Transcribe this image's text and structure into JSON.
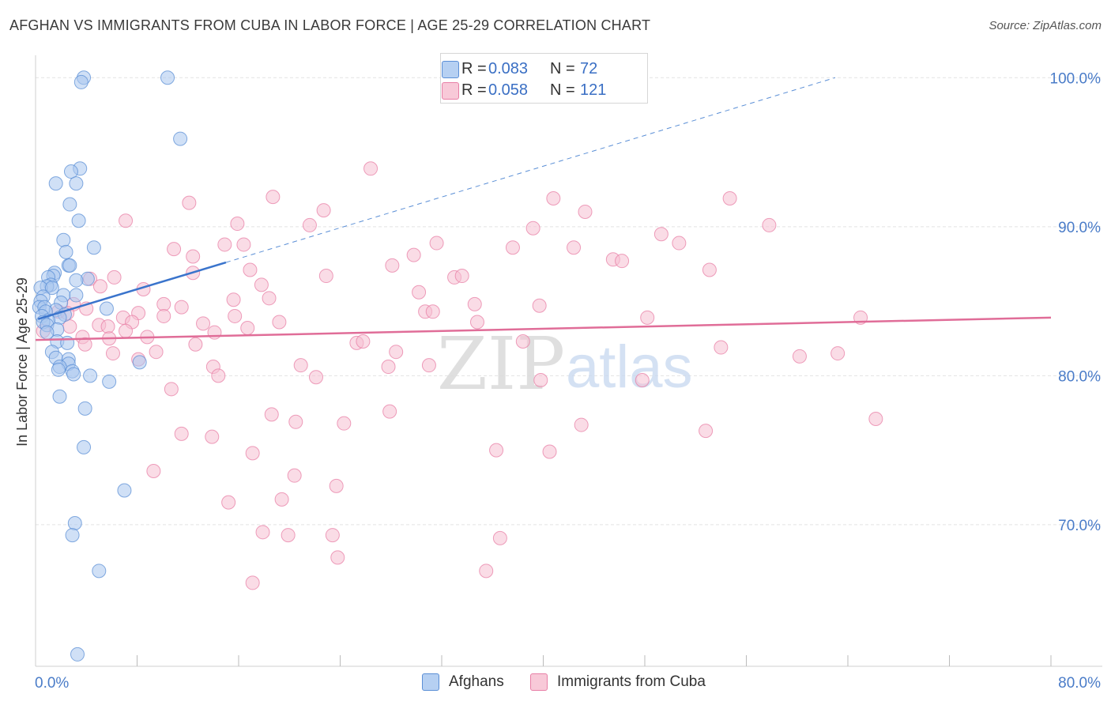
{
  "header": {
    "title": "AFGHAN VS IMMIGRANTS FROM CUBA IN LABOR FORCE | AGE 25-29 CORRELATION CHART",
    "source": "Source: ZipAtlas.com"
  },
  "watermark": {
    "zip": "ZIP",
    "atlas": "atlas"
  },
  "legend": {
    "rows": [
      {
        "r_label": "R =",
        "r_value": "0.083",
        "n_label": "N =",
        "n_value": "72",
        "color": "#5b8fd6"
      },
      {
        "r_label": "R =",
        "r_value": "0.058",
        "n_label": "N =",
        "n_value": "121",
        "color": "#e87fa6"
      }
    ]
  },
  "bottom_legend": [
    {
      "label": "Afghans",
      "color": "#a9c7ef"
    },
    {
      "label": "Immigrants from Cuba",
      "color": "#f6bfd1"
    }
  ],
  "chart_data": {
    "type": "scatter",
    "title": "AFGHAN VS IMMIGRANTS FROM CUBA IN LABOR FORCE | AGE 25-29 CORRELATION CHART",
    "xlabel": "",
    "ylabel": "In Labor Force | Age 25-29",
    "xlim": [
      0,
      80
    ],
    "ylim": [
      60.5,
      101.5
    ],
    "x_tick_labels": [
      "0.0%",
      "80.0%"
    ],
    "y_ticks": [
      70,
      80,
      90,
      100
    ],
    "y_tick_labels": [
      "70.0%",
      "80.0%",
      "90.0%",
      "100.0%"
    ],
    "grid": true,
    "series": [
      {
        "name": "Afghans",
        "color": "#5b8fd6",
        "fill": "#a9c7ef",
        "trend": {
          "x": [
            0.2,
            15.0
          ],
          "y": [
            83.8,
            87.6
          ],
          "dashed_to": [
            63.0,
            100.0
          ]
        },
        "points": [
          [
            3.8,
            100.0
          ],
          [
            10.4,
            100.0
          ],
          [
            3.6,
            99.7
          ],
          [
            11.4,
            95.9
          ],
          [
            3.5,
            93.9
          ],
          [
            2.8,
            93.7
          ],
          [
            1.6,
            92.9
          ],
          [
            3.2,
            92.9
          ],
          [
            2.7,
            91.5
          ],
          [
            3.4,
            90.4
          ],
          [
            4.6,
            88.6
          ],
          [
            2.2,
            89.1
          ],
          [
            2.4,
            88.3
          ],
          [
            2.6,
            87.4
          ],
          [
            2.7,
            87.4
          ],
          [
            1.5,
            86.9
          ],
          [
            1.4,
            86.7
          ],
          [
            1.0,
            86.6
          ],
          [
            4.1,
            86.5
          ],
          [
            3.2,
            86.4
          ],
          [
            1.2,
            86.1
          ],
          [
            0.9,
            86.0
          ],
          [
            0.4,
            85.9
          ],
          [
            1.3,
            85.9
          ],
          [
            2.2,
            85.4
          ],
          [
            3.2,
            85.4
          ],
          [
            0.6,
            85.3
          ],
          [
            0.4,
            85.0
          ],
          [
            2.0,
            84.9
          ],
          [
            0.3,
            84.6
          ],
          [
            0.7,
            84.6
          ],
          [
            5.6,
            84.5
          ],
          [
            1.6,
            84.4
          ],
          [
            0.8,
            84.3
          ],
          [
            2.3,
            84.1
          ],
          [
            1.9,
            83.9
          ],
          [
            0.5,
            84.0
          ],
          [
            1.0,
            83.7
          ],
          [
            0.6,
            83.6
          ],
          [
            0.9,
            83.4
          ],
          [
            1.7,
            83.1
          ],
          [
            0.9,
            82.9
          ],
          [
            1.7,
            82.3
          ],
          [
            2.5,
            82.2
          ],
          [
            1.3,
            81.6
          ],
          [
            1.6,
            81.2
          ],
          [
            2.6,
            81.1
          ],
          [
            8.2,
            80.9
          ],
          [
            2.6,
            80.8
          ],
          [
            1.9,
            80.6
          ],
          [
            1.8,
            80.4
          ],
          [
            2.9,
            80.3
          ],
          [
            3.0,
            80.1
          ],
          [
            4.3,
            80.0
          ],
          [
            5.8,
            79.6
          ],
          [
            1.9,
            78.6
          ],
          [
            3.9,
            77.8
          ],
          [
            3.8,
            75.2
          ],
          [
            7.0,
            72.3
          ],
          [
            3.1,
            70.1
          ],
          [
            2.9,
            69.3
          ],
          [
            5.0,
            66.9
          ],
          [
            3.3,
            61.3
          ]
        ]
      },
      {
        "name": "Immigrants from Cuba",
        "color": "#e87fa6",
        "fill": "#f6bfd1",
        "trend": {
          "x": [
            0.0,
            80.0
          ],
          "y": [
            82.4,
            83.9
          ]
        },
        "points": [
          [
            26.4,
            93.9
          ],
          [
            12.1,
            91.6
          ],
          [
            18.7,
            92.0
          ],
          [
            40.8,
            91.9
          ],
          [
            54.7,
            91.9
          ],
          [
            22.7,
            91.1
          ],
          [
            43.3,
            91.0
          ],
          [
            7.1,
            90.4
          ],
          [
            15.9,
            90.2
          ],
          [
            21.6,
            90.1
          ],
          [
            39.2,
            89.9
          ],
          [
            57.8,
            90.1
          ],
          [
            49.3,
            89.5
          ],
          [
            31.6,
            88.9
          ],
          [
            14.9,
            88.8
          ],
          [
            16.4,
            88.8
          ],
          [
            10.9,
            88.5
          ],
          [
            37.6,
            88.6
          ],
          [
            42.4,
            88.6
          ],
          [
            50.7,
            88.9
          ],
          [
            12.4,
            88.0
          ],
          [
            29.8,
            88.1
          ],
          [
            45.5,
            87.8
          ],
          [
            28.1,
            87.4
          ],
          [
            46.2,
            87.7
          ],
          [
            16.9,
            87.1
          ],
          [
            53.1,
            87.1
          ],
          [
            12.4,
            86.9
          ],
          [
            6.2,
            86.6
          ],
          [
            22.9,
            86.7
          ],
          [
            33.0,
            86.6
          ],
          [
            33.6,
            86.7
          ],
          [
            4.3,
            86.5
          ],
          [
            17.8,
            86.1
          ],
          [
            5.1,
            86.0
          ],
          [
            8.5,
            85.8
          ],
          [
            30.2,
            85.6
          ],
          [
            18.4,
            85.2
          ],
          [
            15.6,
            85.1
          ],
          [
            34.6,
            84.8
          ],
          [
            10.1,
            84.8
          ],
          [
            39.7,
            84.7
          ],
          [
            11.5,
            84.6
          ],
          [
            3.0,
            84.8
          ],
          [
            4.0,
            84.5
          ],
          [
            1.8,
            84.3
          ],
          [
            2.5,
            84.2
          ],
          [
            8.1,
            84.2
          ],
          [
            30.7,
            84.3
          ],
          [
            31.3,
            84.3
          ],
          [
            15.7,
            84.0
          ],
          [
            10.1,
            84.0
          ],
          [
            6.9,
            83.9
          ],
          [
            48.2,
            83.9
          ],
          [
            65.0,
            83.9
          ],
          [
            7.6,
            83.6
          ],
          [
            19.2,
            83.6
          ],
          [
            13.2,
            83.5
          ],
          [
            34.8,
            83.6
          ],
          [
            5.0,
            83.4
          ],
          [
            5.7,
            83.3
          ],
          [
            2.7,
            83.3
          ],
          [
            16.7,
            83.2
          ],
          [
            7.1,
            83.0
          ],
          [
            14.1,
            82.9
          ],
          [
            0.6,
            83.0
          ],
          [
            3.7,
            82.6
          ],
          [
            8.8,
            82.6
          ],
          [
            5.8,
            82.5
          ],
          [
            25.3,
            82.2
          ],
          [
            3.9,
            82.1
          ],
          [
            25.8,
            82.3
          ],
          [
            38.4,
            82.3
          ],
          [
            12.6,
            82.1
          ],
          [
            54.0,
            81.9
          ],
          [
            6.1,
            81.5
          ],
          [
            9.5,
            81.6
          ],
          [
            28.4,
            81.6
          ],
          [
            60.2,
            81.3
          ],
          [
            63.2,
            81.5
          ],
          [
            8.1,
            81.1
          ],
          [
            20.9,
            80.7
          ],
          [
            31.0,
            80.7
          ],
          [
            14.0,
            80.6
          ],
          [
            27.8,
            80.6
          ],
          [
            14.4,
            80.0
          ],
          [
            22.1,
            79.9
          ],
          [
            39.8,
            79.7
          ],
          [
            47.8,
            79.7
          ],
          [
            10.7,
            79.1
          ],
          [
            18.6,
            77.4
          ],
          [
            20.5,
            76.9
          ],
          [
            24.3,
            76.8
          ],
          [
            27.9,
            77.6
          ],
          [
            43.0,
            76.7
          ],
          [
            66.2,
            77.1
          ],
          [
            11.5,
            76.1
          ],
          [
            13.9,
            75.9
          ],
          [
            52.8,
            76.3
          ],
          [
            36.3,
            75.0
          ],
          [
            40.5,
            74.9
          ],
          [
            17.1,
            74.8
          ],
          [
            9.3,
            73.6
          ],
          [
            20.4,
            73.3
          ],
          [
            23.7,
            72.6
          ],
          [
            15.2,
            71.5
          ],
          [
            19.4,
            71.7
          ],
          [
            17.9,
            69.5
          ],
          [
            19.9,
            69.3
          ],
          [
            23.4,
            69.3
          ],
          [
            36.6,
            69.1
          ],
          [
            23.8,
            67.8
          ],
          [
            35.5,
            66.9
          ],
          [
            17.1,
            66.1
          ]
        ]
      }
    ]
  }
}
